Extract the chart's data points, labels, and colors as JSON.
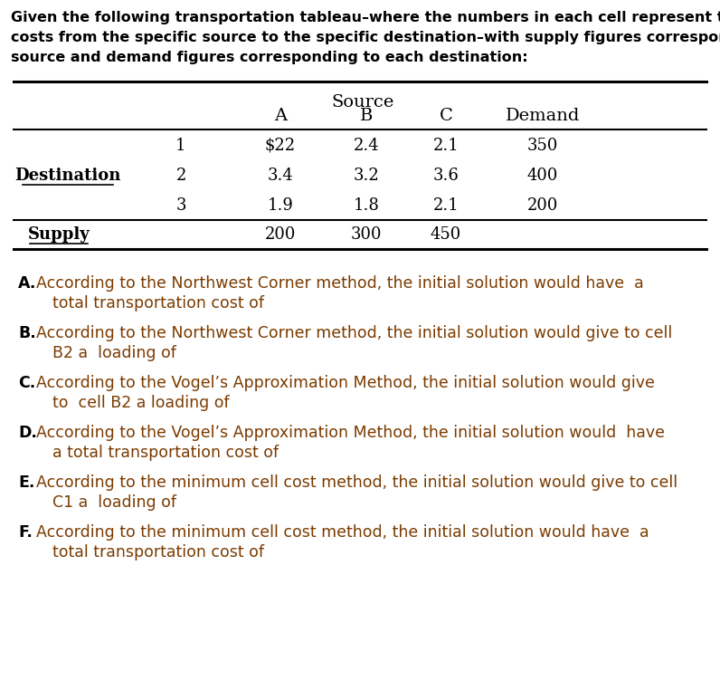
{
  "intro_lines": [
    "Given the following transportation tableau–where the numbers in each cell represent transportation",
    "costs from the specific source to the specific destination–with supply figures corresponding to each",
    "source and demand figures corresponding to each destination:"
  ],
  "source_label": "Source",
  "source_cols": [
    "A",
    "B",
    "C",
    "Demand"
  ],
  "dest_label": "Destination",
  "dest_rows": [
    "1",
    "2",
    "3"
  ],
  "supply_label": "Supply",
  "table_data": [
    [
      "$22",
      "2.4",
      "2.1",
      "350"
    ],
    [
      "3.4",
      "3.2",
      "3.6",
      "400"
    ],
    [
      "1.9",
      "1.8",
      "2.1",
      "200"
    ]
  ],
  "supply_data": [
    "200",
    "300",
    "450"
  ],
  "questions": [
    {
      "letter": "A.",
      "line1": "According to the Northwest Corner method, the initial solution would have  a",
      "line2": "total transportation cost of"
    },
    {
      "letter": "B.",
      "line1": "According to the Northwest Corner method, the initial solution would give to cell",
      "line2": "B2 a  loading of"
    },
    {
      "letter": "C.",
      "line1": "According to the Vogel’s Approximation Method, the initial solution would give",
      "line2": "to  cell B2 a loading of"
    },
    {
      "letter": "D.",
      "line1": "According to the Vogel’s Approximation Method, the initial solution would  have",
      "line2": "a total transportation cost of"
    },
    {
      "letter": "E.",
      "line1": "According to the minimum cell cost method, the initial solution would give to cell",
      "line2": "C1 a  loading of"
    },
    {
      "letter": "F.",
      "line1": "According to the minimum cell cost method, the initial solution would have  a",
      "line2": "total transportation cost of"
    }
  ],
  "bg_color": "#ffffff",
  "text_color_black": "#000000",
  "text_color_brown": "#7B3B00",
  "intro_fontsize": 11.5,
  "table_fontsize": 13,
  "question_fontsize": 12.5
}
